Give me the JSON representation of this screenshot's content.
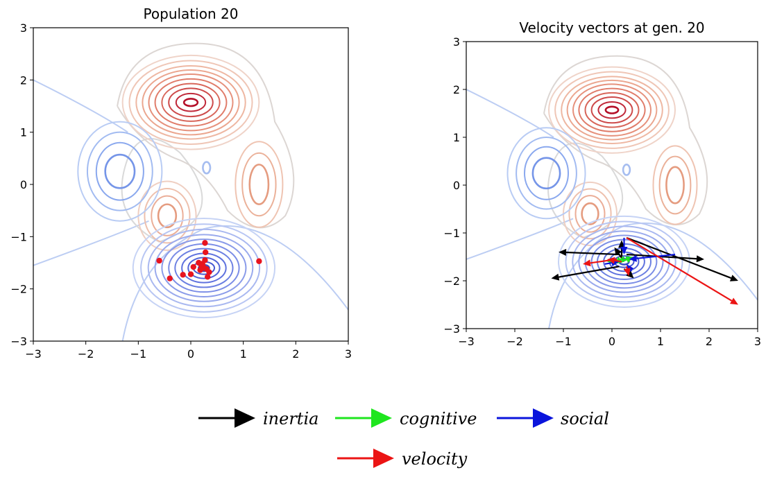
{
  "chart_data": [
    {
      "type": "scatter",
      "title": "Population 20",
      "xlim": [
        -3,
        3
      ],
      "ylim": [
        -3,
        3
      ],
      "xticks": [
        -3,
        -2,
        -1,
        0,
        1,
        2,
        3
      ],
      "yticks": [
        -3,
        -2,
        -1,
        0,
        1,
        2,
        3
      ],
      "xtick_labels": [
        "−3",
        "−2",
        "−1",
        "0",
        "1",
        "2",
        "3"
      ],
      "ytick_labels": [
        "−3",
        "−2",
        "−1",
        "0",
        "1",
        "2",
        "3"
      ],
      "grid": false,
      "background": "contour",
      "points": [
        {
          "x": 0.25,
          "y": -1.6
        },
        {
          "x": 0.3,
          "y": -1.62
        },
        {
          "x": 0.2,
          "y": -1.55
        },
        {
          "x": 0.15,
          "y": -1.5
        },
        {
          "x": 0.27,
          "y": -1.45
        },
        {
          "x": 0.35,
          "y": -1.68
        },
        {
          "x": 0.05,
          "y": -1.58
        },
        {
          "x": 0.0,
          "y": -1.72
        },
        {
          "x": -0.15,
          "y": -1.73
        },
        {
          "x": 0.32,
          "y": -1.77
        },
        {
          "x": 0.22,
          "y": -1.52
        },
        {
          "x": 0.28,
          "y": -1.3
        },
        {
          "x": 0.27,
          "y": -1.12
        },
        {
          "x": -0.4,
          "y": -1.8
        },
        {
          "x": -0.6,
          "y": -1.46
        },
        {
          "x": 1.3,
          "y": -1.47
        },
        {
          "x": 0.18,
          "y": -1.64
        },
        {
          "x": 0.24,
          "y": -1.58
        }
      ],
      "point_color": "#e8141e"
    },
    {
      "type": "quiver",
      "title": "Velocity vectors at gen. 20",
      "xlim": [
        -3,
        3
      ],
      "ylim": [
        -3,
        3
      ],
      "xticks": [
        -3,
        -2,
        -1,
        0,
        1,
        2,
        3
      ],
      "yticks": [
        -3,
        -2,
        -1,
        0,
        1,
        2,
        3
      ],
      "xtick_labels": [
        "−3",
        "−2",
        "−1",
        "0",
        "1",
        "2",
        "3"
      ],
      "ytick_labels": [
        "−3",
        "−2",
        "−1",
        "0",
        "1",
        "2",
        "3"
      ],
      "grid": false,
      "background": "contour",
      "vectors": {
        "inertia": [
          {
            "x0": 0.15,
            "y0": -1.45,
            "x1": -1.1,
            "y1": -1.4
          },
          {
            "x0": 0.15,
            "y0": -1.7,
            "x1": -1.25,
            "y1": -1.95
          },
          {
            "x0": 0.3,
            "y0": -1.1,
            "x1": 2.6,
            "y1": -2.0
          },
          {
            "x0": 0.3,
            "y0": -1.45,
            "x1": 1.9,
            "y1": -1.55
          },
          {
            "x0": 0.25,
            "y0": -1.6,
            "x1": 0.05,
            "y1": -1.3
          },
          {
            "x0": 0.25,
            "y0": -1.75,
            "x1": 0.45,
            "y1": -1.95
          },
          {
            "x0": 0.2,
            "y0": -1.5,
            "x1": 0.2,
            "y1": -1.15
          }
        ],
        "cognitive": [
          {
            "x0": 0.3,
            "y0": -1.55,
            "x1": -0.1,
            "y1": -1.6
          },
          {
            "x0": 0.2,
            "y0": -1.6,
            "x1": 0.45,
            "y1": -1.5
          },
          {
            "x0": 0.25,
            "y0": -1.5,
            "x1": 0.05,
            "y1": -1.65
          }
        ],
        "social": [
          {
            "x0": 1.3,
            "y0": -1.45,
            "x1": 0.35,
            "y1": -1.55
          },
          {
            "x0": 0.25,
            "y0": -1.1,
            "x1": 0.25,
            "y1": -1.45
          },
          {
            "x0": -0.15,
            "y0": -1.65,
            "x1": 0.15,
            "y1": -1.6
          },
          {
            "x0": 0.4,
            "y0": -1.8,
            "x1": 0.3,
            "y1": -1.65
          }
        ],
        "velocity": [
          {
            "x0": 0.3,
            "y0": -1.1,
            "x1": 2.6,
            "y1": -2.5
          },
          {
            "x0": 0.1,
            "y0": -1.55,
            "x1": -0.6,
            "y1": -1.65
          },
          {
            "x0": 0.2,
            "y0": -1.6,
            "x1": -0.1,
            "y1": -1.55
          },
          {
            "x0": 0.3,
            "y0": -1.7,
            "x1": 0.35,
            "y1": -1.9
          }
        ]
      }
    }
  ],
  "colors": {
    "inertia": "#000000",
    "cognitive": "#1ee61e",
    "social": "#0a14dc",
    "velocity": "#eb1414"
  },
  "legend": {
    "placement": "bottom-center",
    "items": [
      {
        "key": "inertia",
        "label": "inertia"
      },
      {
        "key": "cognitive",
        "label": "cognitive"
      },
      {
        "key": "social",
        "label": "social"
      },
      {
        "key": "velocity",
        "label": "velocity"
      }
    ]
  }
}
